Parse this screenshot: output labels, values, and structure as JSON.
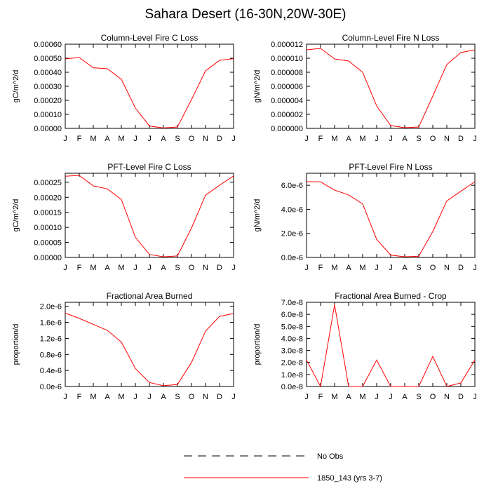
{
  "title": "Sahara Desert (16-30N,20W-30E)",
  "legend": [
    {
      "label": "No Obs",
      "color": "#000000",
      "dashed": true
    },
    {
      "label": "1850_143 (yrs 3-7)",
      "color": "#ff0000",
      "dashed": false
    }
  ],
  "series_color": "#ff0000",
  "chart_data": [
    {
      "type": "line",
      "title": "Column-Level Fire C Loss",
      "ylabel": "gC/m^2/d",
      "categories": [
        "J",
        "F",
        "M",
        "A",
        "M",
        "J",
        "J",
        "A",
        "S",
        "O",
        "N",
        "D",
        "J"
      ],
      "ylim": [
        0,
        0.0006
      ],
      "yticks": [
        0,
        0.0001,
        0.0002,
        0.0003,
        0.0004,
        0.0005,
        0.0006
      ],
      "ytick_labels": [
        "0.00000",
        "0.00010",
        "0.00020",
        "0.00030",
        "0.00040",
        "0.00050",
        "0.00060"
      ],
      "series": [
        {
          "name": "1850_143 (yrs 3-7)",
          "values": [
            0.000495,
            0.000505,
            0.000432,
            0.000425,
            0.00035,
            0.000145,
            1.7e-05,
            3e-06,
            1e-05,
            0.000205,
            0.00041,
            0.000485,
            0.000497
          ]
        }
      ]
    },
    {
      "type": "line",
      "title": "Column-Level Fire N Loss",
      "ylabel": "gN/m^2/d",
      "categories": [
        "J",
        "F",
        "M",
        "A",
        "M",
        "J",
        "J",
        "A",
        "S",
        "O",
        "N",
        "D",
        "J"
      ],
      "ylim": [
        0,
        1.2e-05
      ],
      "yticks": [
        0,
        2e-06,
        4e-06,
        6e-06,
        8e-06,
        1e-05,
        1.2e-05
      ],
      "ytick_labels": [
        "0.000000",
        "0.000002",
        "0.000004",
        "0.000006",
        "0.000008",
        "0.000010",
        "0.000012"
      ],
      "series": [
        {
          "name": "1850_143 (yrs 3-7)",
          "values": [
            1.12e-05,
            1.14e-05,
            9.9e-06,
            9.6e-06,
            8e-06,
            3.2e-06,
            4e-07,
            1e-07,
            2e-07,
            4.6e-06,
            9.1e-06,
            1.08e-05,
            1.12e-05
          ]
        }
      ]
    },
    {
      "type": "line",
      "title": "PFT-Level Fire C Loss",
      "ylabel": "gC/m^2/d",
      "categories": [
        "J",
        "F",
        "M",
        "A",
        "M",
        "J",
        "J",
        "A",
        "S",
        "O",
        "N",
        "D",
        "J"
      ],
      "ylim": [
        0,
        0.00028
      ],
      "yticks": [
        0,
        5e-05,
        0.0001,
        0.00015,
        0.0002,
        0.00025
      ],
      "ytick_labels": [
        "0.00000",
        "0.00005",
        "0.00010",
        "0.00015",
        "0.00020",
        "0.00025"
      ],
      "series": [
        {
          "name": "1850_143 (yrs 3-7)",
          "values": [
            0.00027,
            0.000273,
            0.000238,
            0.000228,
            0.000193,
            6.7e-05,
            1e-05,
            2e-06,
            5e-06,
            9.8e-05,
            0.000207,
            0.00024,
            0.000271
          ]
        }
      ]
    },
    {
      "type": "line",
      "title": "PFT-Level Fire N Loss",
      "ylabel": "gN/m^2/d",
      "categories": [
        "J",
        "F",
        "M",
        "A",
        "M",
        "J",
        "J",
        "A",
        "S",
        "O",
        "N",
        "D",
        "J"
      ],
      "ylim": [
        0,
        7e-06
      ],
      "yticks": [
        0,
        2e-06,
        4e-06,
        6e-06
      ],
      "ytick_labels": [
        "0.0e-6",
        "2.0e-6",
        "4.0e-6",
        "6.0e-6"
      ],
      "series": [
        {
          "name": "1850_143 (yrs 3-7)",
          "values": [
            6.3e-06,
            6.28e-06,
            5.6e-06,
            5.2e-06,
            4.45e-06,
            1.5e-06,
            2e-07,
            5e-08,
            1e-07,
            2.15e-06,
            4.7e-06,
            5.5e-06,
            6.3e-06
          ]
        }
      ]
    },
    {
      "type": "line",
      "title": "Fractional Area Burned",
      "ylabel": "proportion/d",
      "categories": [
        "J",
        "F",
        "M",
        "A",
        "M",
        "J",
        "J",
        "A",
        "S",
        "O",
        "N",
        "D",
        "J"
      ],
      "ylim": [
        0,
        2.1e-06
      ],
      "yticks": [
        0,
        4e-07,
        8e-07,
        1.2e-06,
        1.6e-06,
        2e-06
      ],
      "ytick_labels": [
        "0.0e-6",
        "0.4e-6",
        "0.8e-6",
        "1.2e-6",
        "1.6e-6",
        "2.0e-6"
      ],
      "series": [
        {
          "name": "1850_143 (yrs 3-7)",
          "values": [
            1.83e-06,
            1.7e-06,
            1.55e-06,
            1.4e-06,
            1.11e-06,
            4.5e-07,
            1e-07,
            2e-08,
            5e-08,
            6e-07,
            1.38e-06,
            1.75e-06,
            1.82e-06
          ]
        }
      ]
    },
    {
      "type": "line",
      "title": "Fractional Area Burned - Crop",
      "ylabel": "proportion/d",
      "categories": [
        "J",
        "F",
        "M",
        "A",
        "M",
        "J",
        "J",
        "A",
        "S",
        "O",
        "N",
        "D",
        "J"
      ],
      "ylim": [
        0,
        7e-08
      ],
      "yticks": [
        0,
        1e-08,
        2e-08,
        3e-08,
        4e-08,
        5e-08,
        6e-08,
        7e-08
      ],
      "ytick_labels": [
        "0.0e-8",
        "1.0e-8",
        "2.0e-8",
        "3.0e-8",
        "4.0e-8",
        "5.0e-8",
        "6.0e-8",
        "7.0e-8"
      ],
      "series": [
        {
          "name": "1850_143 (yrs 3-7)",
          "values": [
            2.2e-08,
            0,
            6.8e-08,
            0,
            0,
            2.2e-08,
            0,
            0,
            0,
            2.5e-08,
            0,
            3e-09,
            2.2e-08
          ]
        }
      ]
    }
  ]
}
